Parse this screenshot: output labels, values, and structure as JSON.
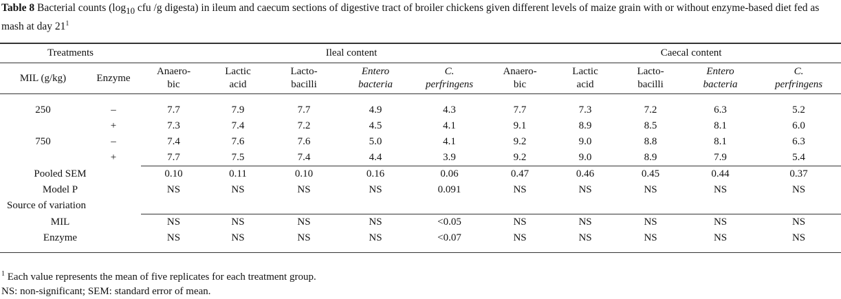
{
  "caption": {
    "label": "Table 8",
    "text_before_sub": " Bacterial counts (log",
    "sub": "10",
    "text_after_sub": " cfu /g digesta) in ileum and caecum sections of digestive tract of broiler chickens given different levels of maize grain with or without enzyme-based diet fed as mash at day 21",
    "sup": "1"
  },
  "header": {
    "treatments": "Treatments",
    "ileal": "Ileal content",
    "caecal": "Caecal content",
    "mil": "MIL (g/kg)",
    "enzyme": "Enzyme",
    "columns": [
      {
        "l1": "Anaero-",
        "l2": "bic",
        "italic": false
      },
      {
        "l1": "Lactic",
        "l2": "acid",
        "italic": false
      },
      {
        "l1": "Lacto-",
        "l2": "bacilli",
        "italic": false
      },
      {
        "l1": "Entero",
        "l2": "bacteria",
        "italic": true
      },
      {
        "l1": "C.",
        "l2": "perfringens",
        "italic": true
      },
      {
        "l1": "Anaero-",
        "l2": "bic",
        "italic": false
      },
      {
        "l1": "Lactic",
        "l2": "acid",
        "italic": false
      },
      {
        "l1": "Lacto-",
        "l2": "bacilli",
        "italic": false
      },
      {
        "l1": "Entero",
        "l2": "bacteria",
        "italic": true
      },
      {
        "l1": "C.",
        "l2": "perfringens",
        "italic": true
      }
    ]
  },
  "rows": [
    {
      "mil": "250",
      "enzyme": "–",
      "values": [
        "7.7",
        "7.9",
        "7.7",
        "4.9",
        "4.3",
        "7.7",
        "7.3",
        "7.2",
        "6.3",
        "5.2"
      ]
    },
    {
      "mil": "",
      "enzyme": "+",
      "values": [
        "7.3",
        "7.4",
        "7.2",
        "4.5",
        "4.1",
        "9.1",
        "8.9",
        "8.5",
        "8.1",
        "6.0"
      ]
    },
    {
      "mil": "750",
      "enzyme": "–",
      "values": [
        "7.4",
        "7.6",
        "7.6",
        "5.0",
        "4.1",
        "9.2",
        "9.0",
        "8.8",
        "8.1",
        "6.3"
      ]
    },
    {
      "mil": "",
      "enzyme": "+",
      "values": [
        "7.7",
        "7.5",
        "7.4",
        "4.4",
        "3.9",
        "9.2",
        "9.0",
        "8.9",
        "7.9",
        "5.4"
      ]
    }
  ],
  "stats": {
    "pooled_sem": {
      "label": "Pooled SEM",
      "values": [
        "0.10",
        "0.11",
        "0.10",
        "0.16",
        "0.06",
        "0.47",
        "0.46",
        "0.45",
        "0.44",
        "0.37"
      ]
    },
    "model_p": {
      "label": "Model P",
      "values": [
        "NS",
        "NS",
        "NS",
        "NS",
        "0.091",
        "NS",
        "NS",
        "NS",
        "NS",
        "NS"
      ]
    },
    "source_label": "Source of variation",
    "mil": {
      "label": "MIL",
      "values": [
        "NS",
        "NS",
        "NS",
        "NS",
        "<0.05",
        "NS",
        "NS",
        "NS",
        "NS",
        "NS"
      ]
    },
    "enzyme": {
      "label": "Enzyme",
      "values": [
        "NS",
        "NS",
        "NS",
        "NS",
        "<0.07",
        "NS",
        "NS",
        "NS",
        "NS",
        "NS"
      ]
    }
  },
  "footnotes": {
    "sup": "1",
    "note1": " Each value represents the mean of five replicates for each treatment group.",
    "note2": "NS: non-significant; SEM: standard error of mean."
  }
}
